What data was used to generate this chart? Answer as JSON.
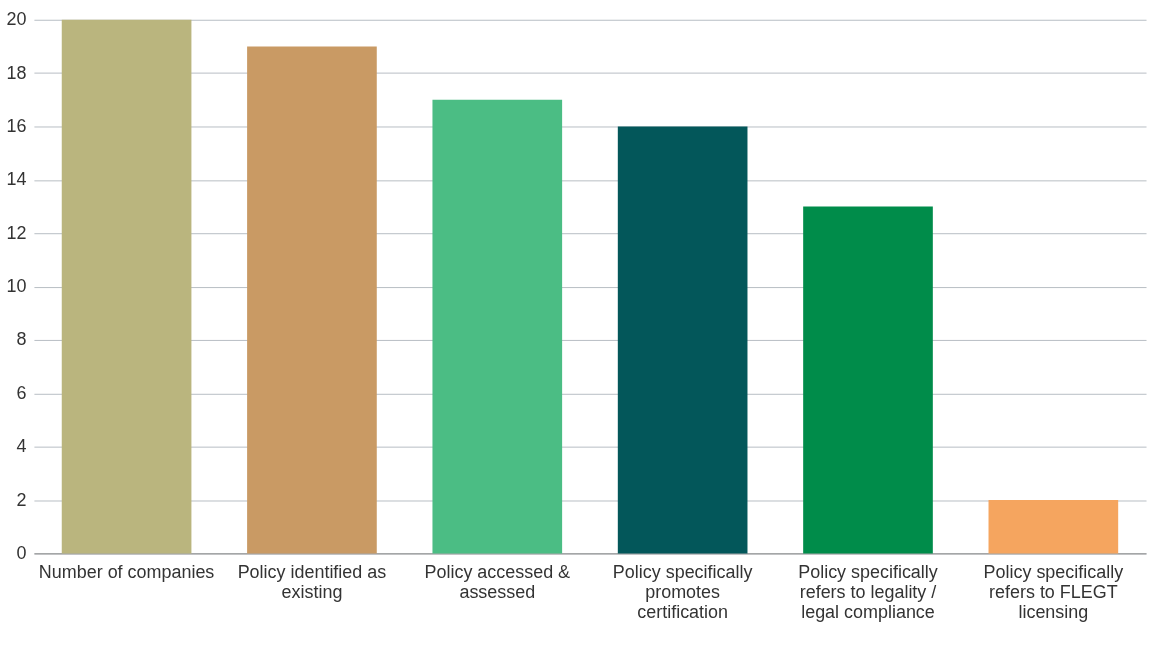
{
  "chart_data": {
    "type": "bar",
    "categories": [
      "Number of companies",
      "Policy identified as existing",
      "Policy accessed & assessed",
      "Policy specifically promotes certification",
      "Policy specifically refers to legality / legal compliance",
      "Policy specifically refers to FLEGT licensing"
    ],
    "values": [
      20,
      19,
      17,
      16,
      13,
      2
    ],
    "colors": [
      "#bab57e",
      "#c99a64",
      "#4bbd84",
      "#03575a",
      "#008c4a",
      "#f5a55f"
    ],
    "ylim": [
      0,
      20
    ],
    "yticks": [
      0,
      2,
      4,
      6,
      8,
      10,
      12,
      14,
      16,
      18,
      20
    ],
    "grid": "y"
  }
}
